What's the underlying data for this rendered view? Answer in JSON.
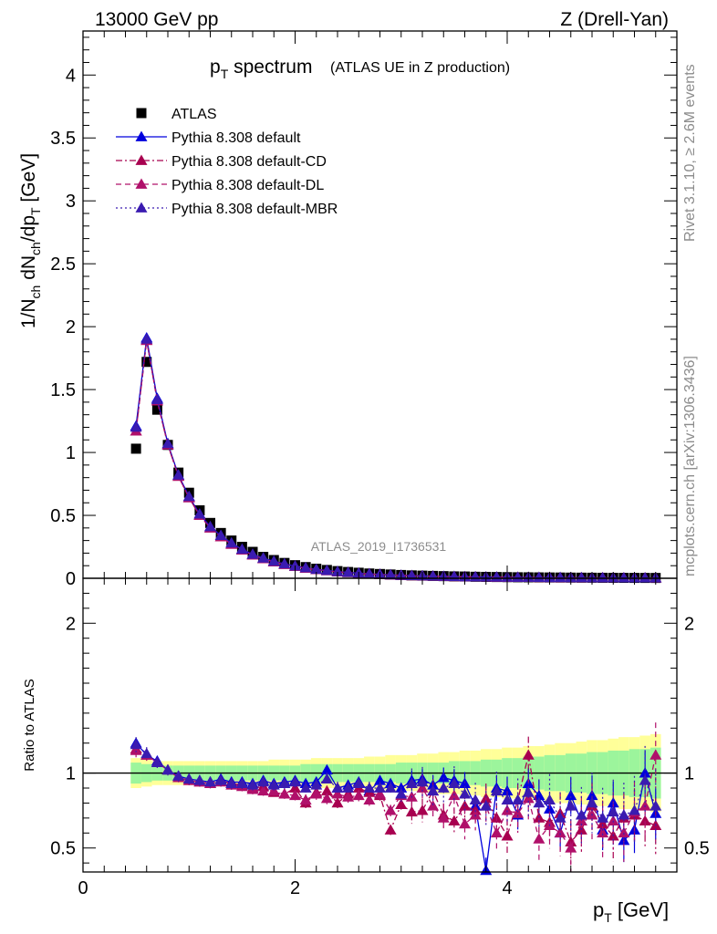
{
  "header": {
    "energy_label": "13000 GeV pp",
    "process_label": "Z (Drell-Yan)"
  },
  "side_labels": {
    "rivet": "Rivet 3.1.10, ≥ 2.6M events",
    "mcplots": "mcplots.cern.ch [arXiv:1306.3436]"
  },
  "title_main_p": "p",
  "title_main_sub": "T",
  "title_main_rest": " spectrum",
  "title_note": "(ATLAS UE in Z production)",
  "analysis_label": "ATLAS_2019_I1736531",
  "y_axis_label": "1/N_ch dN_ch/dp_T [GeV]",
  "x_axis_label": "p_T [GeV]",
  "ratio_axis_label": "Ratio to ATLAS",
  "colors": {
    "data": "#000000",
    "default": "#0000dd",
    "cd": "#a8004f",
    "dl": "#b0106a",
    "mbr": "#3a1bb0",
    "band_inner": "#9cf59c",
    "band_outer": "#ffff99"
  },
  "legend": [
    {
      "label": "ATLAS",
      "marker": "square",
      "color": "#000000",
      "dash": "none"
    },
    {
      "label": "Pythia 8.308 default",
      "marker": "triangle",
      "color": "#0000dd",
      "dash": "solid"
    },
    {
      "label": "Pythia 8.308 default-CD",
      "marker": "triangle",
      "color": "#a8004f",
      "dash": "dashdot"
    },
    {
      "label": "Pythia 8.308 default-DL",
      "marker": "triangle",
      "color": "#b0106a",
      "dash": "dash"
    },
    {
      "label": "Pythia 8.308 default-MBR",
      "marker": "triangle",
      "color": "#3a1bb0",
      "dash": "dot"
    }
  ],
  "chart_data": [
    {
      "type": "scatter",
      "title": "p_T spectrum (ATLAS UE in Z production)",
      "xlabel": "p_T [GeV]",
      "ylabel": "1/N_ch dN_ch/dp_T [GeV]",
      "xlim": [
        0,
        5.6
      ],
      "ylim": [
        0,
        4.35
      ],
      "yticks": [
        "0",
        "0.5",
        "1",
        "1.5",
        "2",
        "2.5",
        "3",
        "3.5",
        "4"
      ],
      "x": [
        0.5,
        0.6,
        0.7,
        0.8,
        0.9,
        1.0,
        1.1,
        1.2,
        1.3,
        1.4,
        1.5,
        1.6,
        1.7,
        1.8,
        1.9,
        2.0,
        2.1,
        2.2,
        2.3,
        2.4,
        2.5,
        2.6,
        2.7,
        2.8,
        2.9,
        3.0,
        3.1,
        3.2,
        3.3,
        3.4,
        3.5,
        3.6,
        3.7,
        3.8,
        3.9,
        4.0,
        4.1,
        4.2,
        4.3,
        4.4,
        4.5,
        4.6,
        4.7,
        4.8,
        4.9,
        5.0,
        5.1,
        5.2,
        5.3,
        5.4
      ],
      "series": [
        {
          "name": "ATLAS",
          "values": [
            1.03,
            1.72,
            1.34,
            1.06,
            0.84,
            0.68,
            0.54,
            0.44,
            0.36,
            0.3,
            0.25,
            0.21,
            0.17,
            0.145,
            0.122,
            0.104,
            0.089,
            0.076,
            0.066,
            0.057,
            0.05,
            0.044,
            0.038,
            0.034,
            0.03,
            0.026,
            0.023,
            0.021,
            0.019,
            0.017,
            0.015,
            0.014,
            0.012,
            0.011,
            0.01,
            0.009,
            0.008,
            0.0075,
            0.007,
            0.0063,
            0.0058,
            0.0052,
            0.0048,
            0.0044,
            0.004,
            0.0037,
            0.0034,
            0.0031,
            0.0029,
            0.0027
          ]
        },
        {
          "name": "Pythia 8.308 default",
          "values": [
            1.21,
            1.91,
            1.43,
            1.07,
            0.82,
            0.65,
            0.51,
            0.41,
            0.34,
            0.28,
            0.23,
            0.19,
            0.16,
            0.135,
            0.114,
            0.097,
            0.083,
            0.071,
            0.062,
            0.053,
            0.046,
            0.041,
            0.035,
            0.031,
            0.027,
            0.024,
            0.021,
            0.019,
            0.017,
            0.015,
            0.014,
            0.012,
            0.011,
            0.01,
            0.009,
            0.008,
            0.007,
            0.0068,
            0.0062,
            0.0056,
            0.0051,
            0.0046,
            0.0042,
            0.0038,
            0.0035,
            0.0032,
            0.003,
            0.0027,
            0.0025,
            0.0023
          ]
        },
        {
          "name": "Pythia 8.308 default-CD",
          "values": [
            1.17,
            1.89,
            1.41,
            1.06,
            0.81,
            0.64,
            0.5,
            0.4,
            0.33,
            0.27,
            0.225,
            0.185,
            0.155,
            0.13,
            0.11,
            0.094,
            0.08,
            0.069,
            0.06,
            0.051,
            0.045,
            0.039,
            0.034,
            0.03,
            0.026,
            0.023,
            0.02,
            0.018,
            0.016,
            0.014,
            0.013,
            0.012,
            0.01,
            0.0095,
            0.0085,
            0.0076,
            0.0068,
            0.0063,
            0.0058,
            0.0052,
            0.0048,
            0.0043,
            0.0039,
            0.0036,
            0.0033,
            0.003,
            0.0028,
            0.0025,
            0.0023,
            0.0021
          ]
        },
        {
          "name": "Pythia 8.308 default-DL",
          "values": [
            1.17,
            1.89,
            1.41,
            1.06,
            0.81,
            0.64,
            0.5,
            0.4,
            0.33,
            0.27,
            0.225,
            0.185,
            0.155,
            0.13,
            0.11,
            0.094,
            0.08,
            0.069,
            0.06,
            0.051,
            0.045,
            0.039,
            0.034,
            0.03,
            0.026,
            0.023,
            0.02,
            0.018,
            0.016,
            0.014,
            0.013,
            0.012,
            0.01,
            0.0095,
            0.0085,
            0.0076,
            0.0068,
            0.0063,
            0.0058,
            0.0052,
            0.0048,
            0.0043,
            0.0039,
            0.0036,
            0.0033,
            0.003,
            0.0028,
            0.0025,
            0.0023,
            0.0021
          ]
        },
        {
          "name": "Pythia 8.308 default-MBR",
          "values": [
            1.2,
            1.9,
            1.42,
            1.07,
            0.82,
            0.65,
            0.51,
            0.41,
            0.34,
            0.28,
            0.23,
            0.19,
            0.16,
            0.135,
            0.114,
            0.097,
            0.083,
            0.071,
            0.062,
            0.053,
            0.046,
            0.041,
            0.035,
            0.031,
            0.027,
            0.024,
            0.021,
            0.019,
            0.017,
            0.015,
            0.014,
            0.012,
            0.011,
            0.01,
            0.009,
            0.008,
            0.007,
            0.0068,
            0.0062,
            0.0056,
            0.0051,
            0.0046,
            0.0042,
            0.0038,
            0.0035,
            0.0032,
            0.003,
            0.0027,
            0.0025,
            0.0023
          ]
        }
      ]
    },
    {
      "type": "scatter",
      "title": "Ratio to ATLAS",
      "xlabel": "p_T [GeV]",
      "ylabel": "Ratio to ATLAS",
      "xlim": [
        0,
        5.6
      ],
      "ylim": [
        0.34,
        2.3
      ],
      "xticks": [
        "0",
        "2",
        "4"
      ],
      "yticks": [
        "0.5",
        "1",
        "2"
      ],
      "reference_line": 1.0,
      "x": [
        0.5,
        0.6,
        0.7,
        0.8,
        0.9,
        1.0,
        1.1,
        1.2,
        1.3,
        1.4,
        1.5,
        1.6,
        1.7,
        1.8,
        1.9,
        2.0,
        2.1,
        2.2,
        2.3,
        2.4,
        2.5,
        2.6,
        2.7,
        2.8,
        2.9,
        3.0,
        3.1,
        3.2,
        3.3,
        3.4,
        3.5,
        3.6,
        3.7,
        3.8,
        3.9,
        4.0,
        4.1,
        4.2,
        4.3,
        4.4,
        4.5,
        4.6,
        4.7,
        4.8,
        4.9,
        5.0,
        5.1,
        5.2,
        5.3,
        5.4
      ],
      "band_inner": [
        0.07,
        0.06,
        0.05,
        0.05,
        0.05,
        0.05,
        0.05,
        0.05,
        0.05,
        0.05,
        0.05,
        0.05,
        0.05,
        0.05,
        0.05,
        0.05,
        0.06,
        0.06,
        0.06,
        0.06,
        0.06,
        0.06,
        0.06,
        0.06,
        0.06,
        0.07,
        0.07,
        0.07,
        0.07,
        0.07,
        0.08,
        0.08,
        0.08,
        0.09,
        0.09,
        0.1,
        0.1,
        0.11,
        0.11,
        0.12,
        0.12,
        0.13,
        0.13,
        0.14,
        0.14,
        0.15,
        0.15,
        0.16,
        0.16,
        0.17
      ],
      "band_outer": [
        0.1,
        0.09,
        0.08,
        0.08,
        0.08,
        0.08,
        0.08,
        0.08,
        0.08,
        0.08,
        0.08,
        0.08,
        0.08,
        0.09,
        0.09,
        0.09,
        0.09,
        0.1,
        0.1,
        0.1,
        0.1,
        0.1,
        0.11,
        0.11,
        0.12,
        0.12,
        0.12,
        0.13,
        0.13,
        0.14,
        0.14,
        0.15,
        0.15,
        0.16,
        0.16,
        0.17,
        0.17,
        0.18,
        0.18,
        0.19,
        0.2,
        0.2,
        0.21,
        0.22,
        0.22,
        0.23,
        0.24,
        0.24,
        0.25,
        0.26
      ],
      "series": [
        {
          "name": "Pythia 8.308 default",
          "values": [
            1.2,
            1.12,
            1.08,
            1.02,
            0.98,
            0.96,
            0.95,
            0.94,
            0.96,
            0.94,
            0.94,
            0.93,
            0.95,
            0.93,
            0.94,
            0.95,
            0.93,
            0.94,
            1.02,
            0.9,
            0.92,
            0.94,
            0.88,
            0.95,
            0.93,
            0.9,
            0.95,
            0.96,
            0.92,
            0.97,
            0.95,
            0.93,
            0.78,
            0.35,
            0.9,
            0.88,
            0.72,
            0.93,
            0.85,
            0.76,
            0.6,
            0.85,
            0.68,
            0.85,
            0.62,
            0.8,
            0.55,
            0.62,
            1.0,
            0.73
          ]
        },
        {
          "name": "Pythia 8.308 default-CD",
          "values": [
            1.16,
            1.12,
            1.07,
            1.02,
            0.97,
            0.95,
            0.94,
            0.93,
            0.95,
            0.93,
            0.92,
            0.9,
            0.91,
            0.87,
            0.86,
            0.9,
            0.8,
            0.87,
            0.88,
            0.8,
            0.86,
            0.9,
            0.87,
            0.85,
            0.62,
            0.79,
            0.74,
            0.75,
            0.88,
            0.72,
            0.68,
            0.78,
            0.75,
            0.83,
            0.7,
            0.58,
            0.82,
            1.12,
            0.7,
            0.67,
            0.73,
            0.54,
            0.62,
            0.78,
            0.66,
            0.58,
            0.7,
            0.72,
            0.68,
            0.65
          ]
        },
        {
          "name": "Pythia 8.308 default-DL",
          "values": [
            1.15,
            1.12,
            1.07,
            1.02,
            0.97,
            0.95,
            0.94,
            0.93,
            0.94,
            0.92,
            0.91,
            0.89,
            0.88,
            0.88,
            0.86,
            0.85,
            0.82,
            0.86,
            0.83,
            0.86,
            0.84,
            0.85,
            0.82,
            0.86,
            0.75,
            0.85,
            0.84,
            0.9,
            0.78,
            0.7,
            0.85,
            0.66,
            0.72,
            0.78,
            0.6,
            0.75,
            0.73,
            0.83,
            0.56,
            0.65,
            0.6,
            0.5,
            0.68,
            0.72,
            0.6,
            0.68,
            0.6,
            0.74,
            0.78,
            1.12
          ]
        },
        {
          "name": "Pythia 8.308 default-MBR",
          "values": [
            1.19,
            1.13,
            1.07,
            1.02,
            0.98,
            0.96,
            0.95,
            0.94,
            0.95,
            0.93,
            0.93,
            0.92,
            0.94,
            0.92,
            0.93,
            0.94,
            0.9,
            0.92,
            0.96,
            0.9,
            0.9,
            0.93,
            0.9,
            0.9,
            0.9,
            0.86,
            0.93,
            0.94,
            0.88,
            0.9,
            0.93,
            0.86,
            0.82,
            0.78,
            0.88,
            0.82,
            0.82,
            0.87,
            0.8,
            0.82,
            0.7,
            0.78,
            0.72,
            0.8,
            0.7,
            0.74,
            0.72,
            0.75,
            0.95,
            0.78
          ]
        }
      ]
    }
  ]
}
